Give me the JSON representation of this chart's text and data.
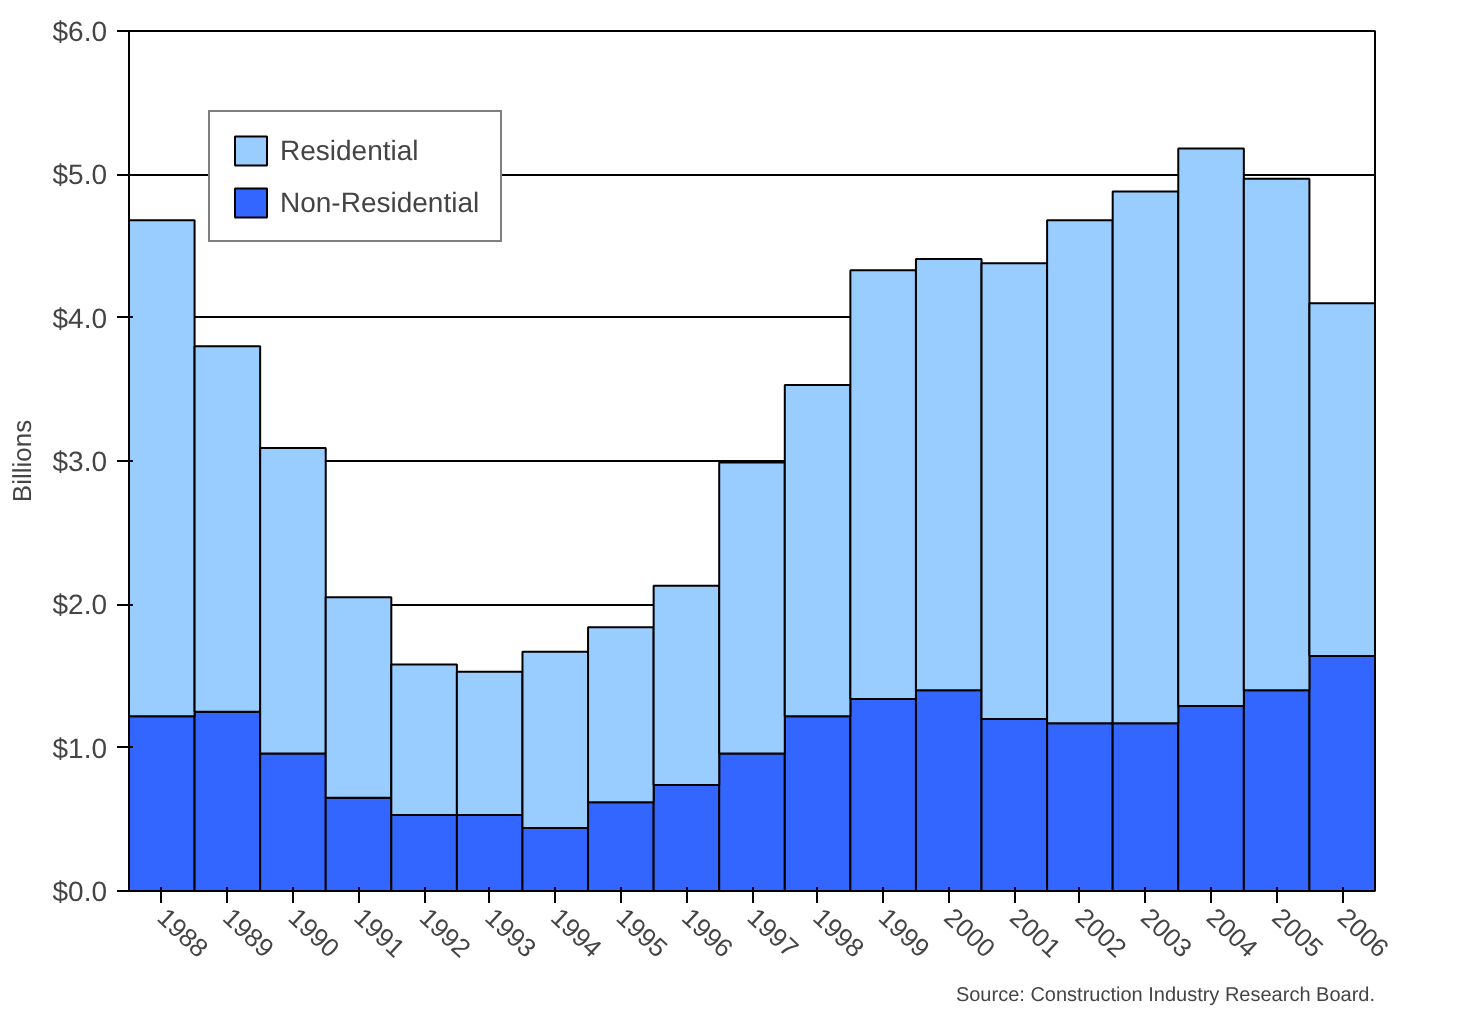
{
  "chart_data": {
    "type": "bar",
    "stacked": true,
    "ylabel": "Billions",
    "categories": [
      "1988",
      "1989",
      "1990",
      "1991",
      "1992",
      "1993",
      "1994",
      "1995",
      "1996",
      "1997",
      "1998",
      "1999",
      "2000",
      "2001",
      "2002",
      "2003",
      "2004",
      "2005",
      "2006"
    ],
    "series": [
      {
        "name": "Non-Residential",
        "color": "#3366ff",
        "values": [
          1.22,
          1.25,
          0.96,
          0.65,
          0.53,
          0.53,
          0.44,
          0.62,
          0.74,
          0.96,
          1.22,
          1.34,
          1.4,
          1.2,
          1.17,
          1.17,
          1.29,
          1.4,
          1.64
        ]
      },
      {
        "name": "Residential",
        "color": "#99ccff",
        "values": [
          3.46,
          2.55,
          2.13,
          1.4,
          1.05,
          1.0,
          1.23,
          1.22,
          1.39,
          2.03,
          2.31,
          2.99,
          3.01,
          3.18,
          3.51,
          3.71,
          3.89,
          3.57,
          2.46
        ]
      }
    ],
    "ylim": [
      0,
      6
    ],
    "yticks": [
      {
        "value": 0,
        "label": "$0.0"
      },
      {
        "value": 1,
        "label": "$1.0"
      },
      {
        "value": 2,
        "label": "$2.0"
      },
      {
        "value": 3,
        "label": "$3.0"
      },
      {
        "value": 4,
        "label": "$4.0"
      },
      {
        "value": 5,
        "label": "$5.0"
      },
      {
        "value": 6,
        "label": "$6.0"
      }
    ],
    "grid": "y",
    "legend": "top left",
    "annotations": [
      "Source: Construction Industry Research Board."
    ]
  }
}
